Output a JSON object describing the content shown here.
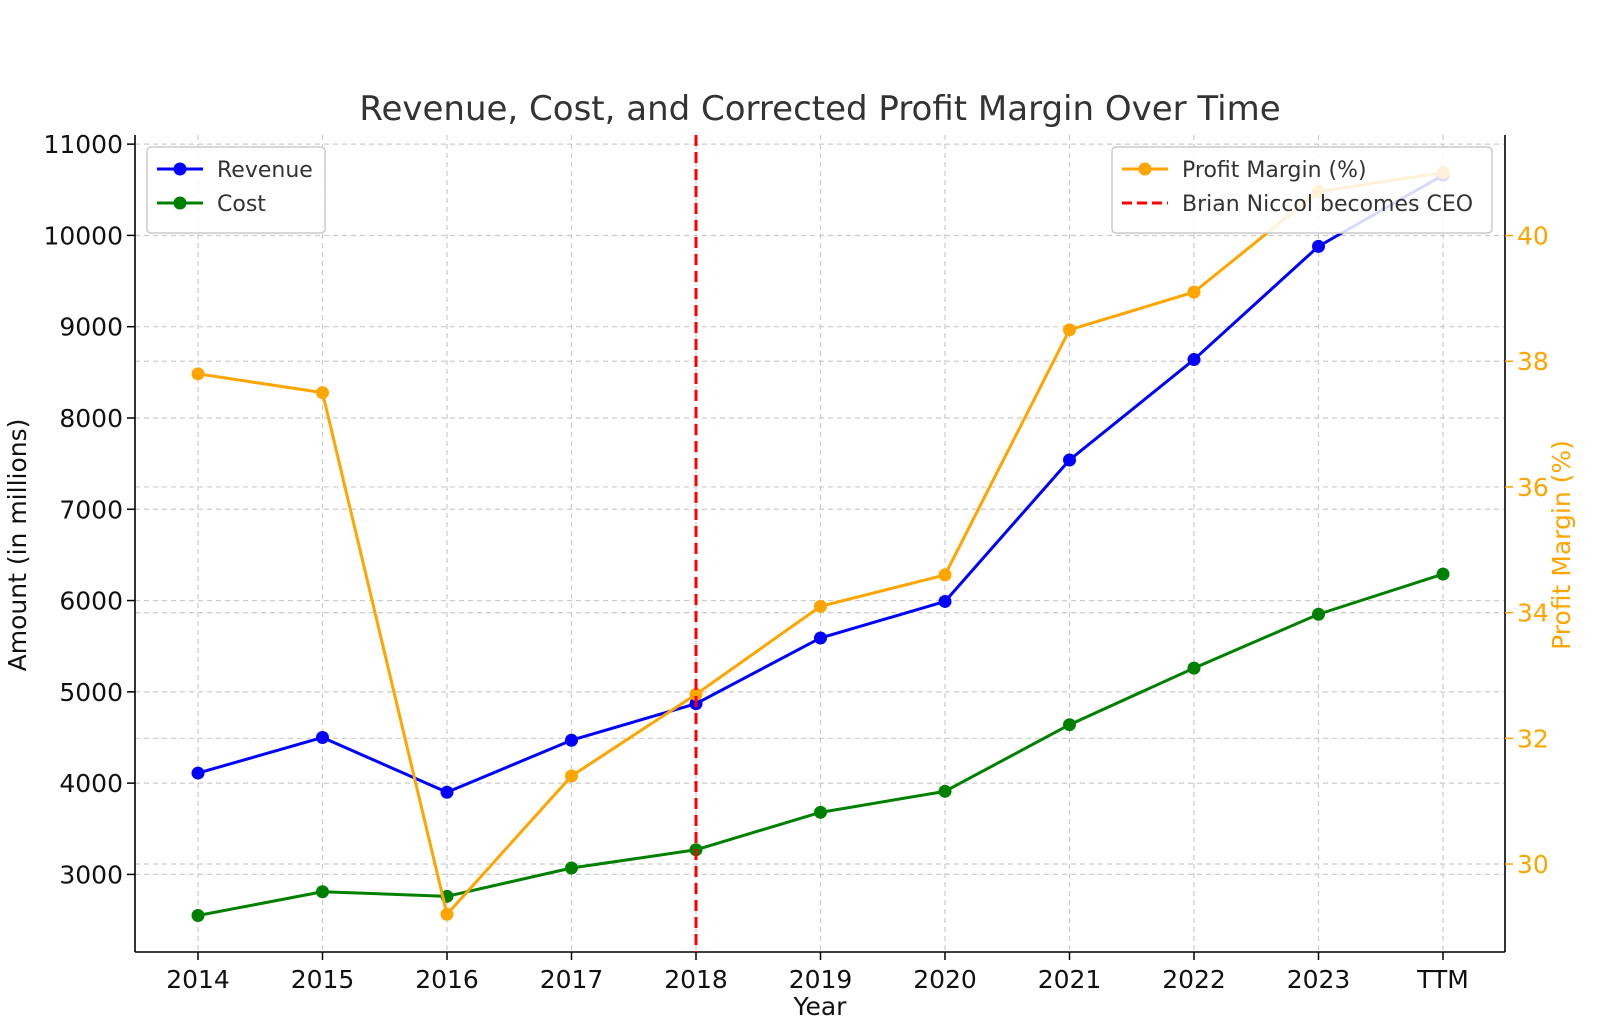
{
  "chart_data": {
    "type": "line",
    "title": "Revenue, Cost, and Corrected Profit Margin Over Time",
    "xlabel": "Year",
    "ylabel": "Amount (in millions)",
    "y2label": "Profit Margin (%)",
    "categories": [
      "2014",
      "2015",
      "2016",
      "2017",
      "2018",
      "2019",
      "2020",
      "2021",
      "2022",
      "2023",
      "TTM"
    ],
    "ylim": [
      2150,
      11100
    ],
    "yticks": [
      3000,
      4000,
      5000,
      6000,
      7000,
      8000,
      9000,
      10000,
      11000
    ],
    "y2lim": [
      28.6,
      41.6
    ],
    "y2ticks": [
      30,
      32,
      34,
      36,
      38,
      40
    ],
    "grid": true,
    "series": [
      {
        "name": "Revenue",
        "axis": "left",
        "color": "#0000ff",
        "values": [
          4110,
          4500,
          3900,
          4470,
          4870,
          5590,
          5990,
          7540,
          8640,
          9880,
          10660
        ]
      },
      {
        "name": "Cost",
        "axis": "left",
        "color": "#008000",
        "values": [
          2550,
          2810,
          2760,
          3070,
          3270,
          3680,
          3910,
          4640,
          5260,
          5850,
          6290
        ]
      },
      {
        "name": "Profit Margin (%)",
        "axis": "right",
        "color": "#ffa500",
        "values": [
          37.8,
          37.5,
          29.2,
          31.4,
          32.7,
          34.1,
          34.6,
          38.5,
          39.1,
          40.7,
          41.0
        ]
      }
    ],
    "annotation": {
      "label": "Brian Niccol becomes CEO",
      "x": "2018",
      "color": "#ff0000",
      "style": "dashed"
    },
    "legend_left": {
      "placement": "upper-left",
      "entries": [
        "Revenue",
        "Cost"
      ]
    },
    "legend_right": {
      "placement": "upper-right",
      "entries": [
        "Profit Margin (%)",
        "Brian Niccol becomes CEO"
      ]
    }
  }
}
